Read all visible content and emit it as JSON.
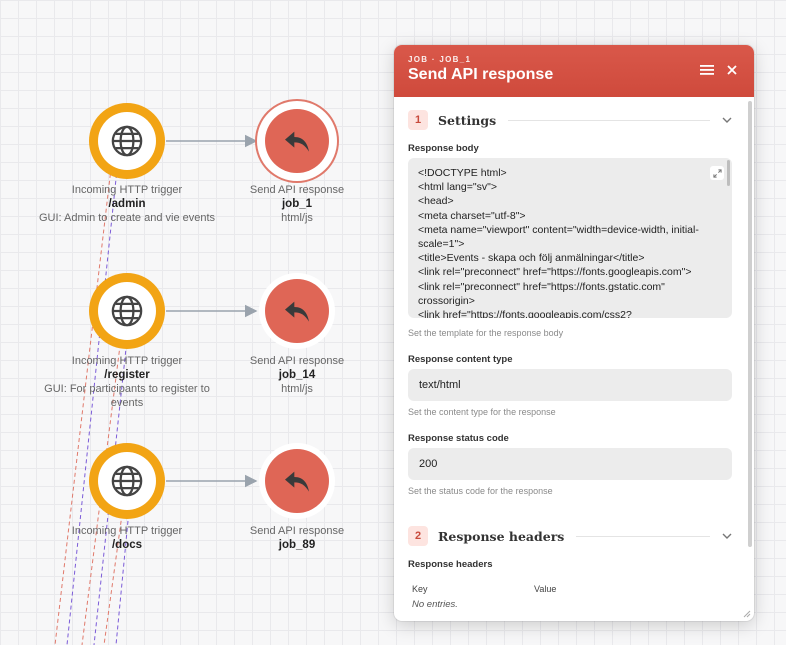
{
  "canvas": {
    "rows": [
      {
        "trigger": {
          "type": "Incoming HTTP trigger",
          "path": "/admin",
          "desc": "GUI: Admin to create and vie events"
        },
        "response": {
          "type": "Send API response",
          "job": "job_1",
          "kind": "html/js",
          "selected": true
        }
      },
      {
        "trigger": {
          "type": "Incoming HTTP trigger",
          "path": "/register",
          "desc": "GUI: For participants to register to events"
        },
        "response": {
          "type": "Send API response",
          "job": "job_14",
          "kind": "html/js",
          "selected": false
        }
      },
      {
        "trigger": {
          "type": "Incoming HTTP trigger",
          "path": "/docs",
          "desc": ""
        },
        "response": {
          "type": "Send API response",
          "job": "job_89",
          "kind": "",
          "selected": false
        }
      }
    ],
    "colors": {
      "trigger": "#f2a414",
      "response": "#df6656",
      "edge": "#9aa3ad"
    }
  },
  "panel": {
    "kicker": "JOB · JOB_1",
    "title": "Send API response",
    "menu_icon": "hamburger-icon",
    "close_icon": "close-icon",
    "sections": {
      "settings": {
        "num": "1",
        "title": "Settings"
      },
      "headers": {
        "num": "2",
        "title": "Response headers"
      }
    },
    "fields": {
      "body": {
        "label": "Response body",
        "lines": [
          "<!DOCTYPE html>",
          "<html lang=\"sv\">",
          "<head>",
          "<meta charset=\"utf-8\">",
          "<meta name=\"viewport\" content=\"width=device-width, initial-scale=1\">",
          "<title>Events - skapa och följ anmälningar</title>",
          "<link rel=\"preconnect\" href=\"https://fonts.googleapis.com\">",
          "<link rel=\"preconnect\" href=\"https://fonts.gstatic.com\" crossorigin>",
          "<link href=\"https://fonts.googleapis.com/css2?"
        ],
        "help": "Set the template for the response body"
      },
      "content_type": {
        "label": "Response content type",
        "value": "text/html",
        "help": "Set the content type for the response"
      },
      "status_code": {
        "label": "Response status code",
        "value": "200",
        "help": "Set the status code for the response"
      }
    },
    "headers_table": {
      "label": "Response headers",
      "columns": [
        "Key",
        "Value"
      ],
      "empty": "No entries."
    }
  }
}
